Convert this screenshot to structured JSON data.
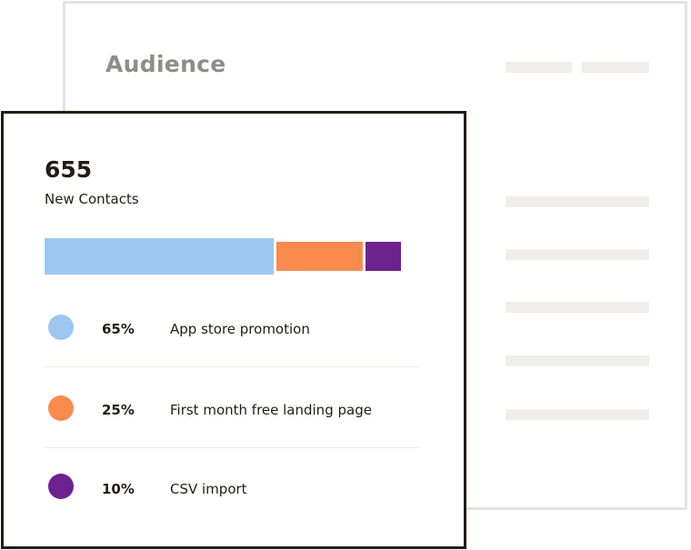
{
  "background_panel": {
    "title": "Audience"
  },
  "summary": {
    "count": "655",
    "count_label": "New Contacts"
  },
  "bar": {
    "segments": [
      {
        "name": "App store promotion",
        "share": 0.65,
        "color": "#9dc6f0"
      },
      {
        "name": "First month free landing page",
        "share": 0.25,
        "color": "#fb8a4f"
      },
      {
        "name": "CSV import",
        "share": 0.1,
        "color": "#6b228f"
      }
    ]
  },
  "legend": {
    "rows": [
      {
        "percent": "65%",
        "label": "App store promotion",
        "color": "#9dc6f0"
      },
      {
        "percent": "25%",
        "label": "First month free landing page",
        "color": "#fb8a4f"
      },
      {
        "percent": "10%",
        "label": "CSV import",
        "color": "#6b228f"
      }
    ]
  },
  "colors": {
    "ink": "#241c15",
    "muted": "#8d8d8b",
    "placeholder": "#efeeea"
  }
}
